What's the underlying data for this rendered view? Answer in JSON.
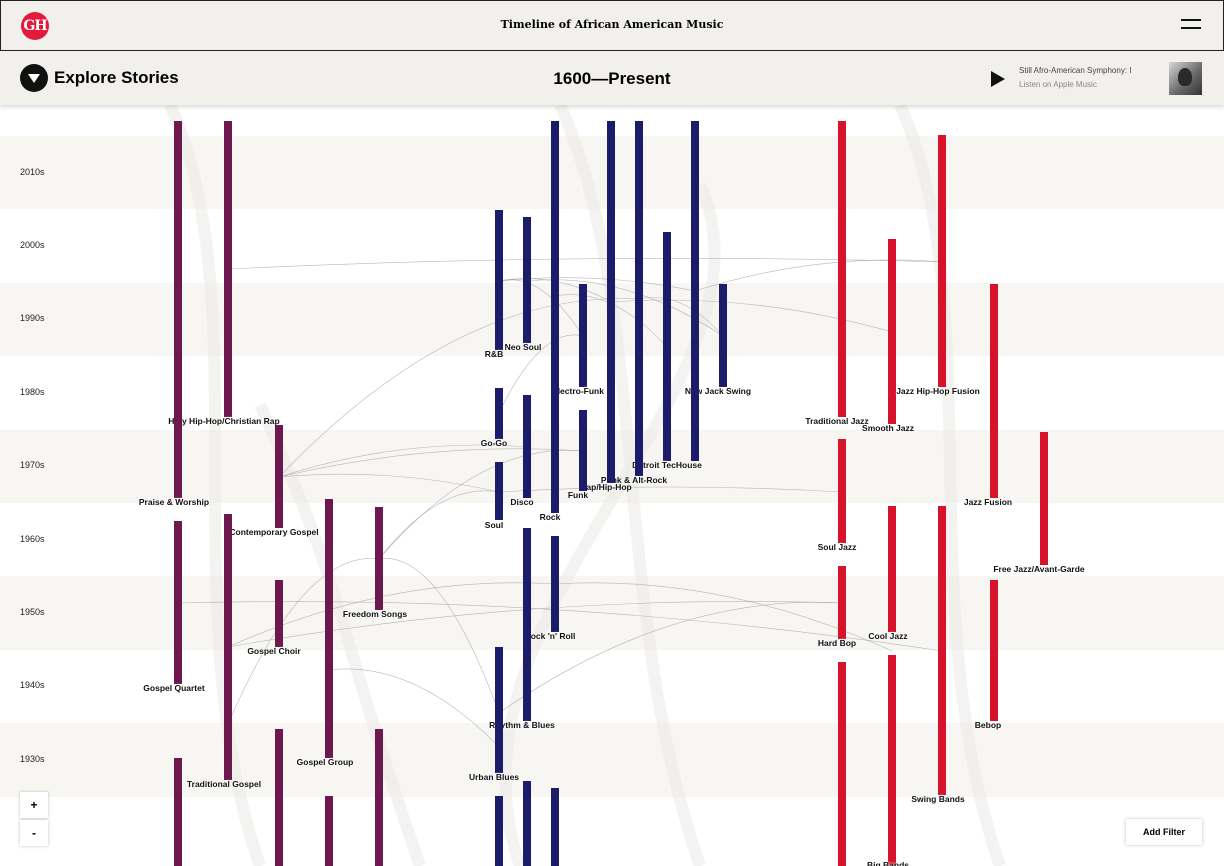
{
  "header": {
    "logo_text": "GH",
    "title": "Timeline of African American Music",
    "menu_icon": "hamburger-icon"
  },
  "subbar": {
    "explore_label": "Explore Stories",
    "period": "1600—Present",
    "track_text": "Still    Afro-American Symphony: I",
    "apple_label": "Listen on Apple Music"
  },
  "decades": [
    "2010s",
    "2000s",
    "1990s",
    "1980s",
    "1970s",
    "1960s",
    "1950s",
    "1940s",
    "1930s"
  ],
  "colors": {
    "gospel": "#6e1850",
    "rnb": "#1b1d6b",
    "jazz": "#d7132c",
    "band_alt": "#f7f6f3",
    "background": "#ffffff"
  },
  "genres": [
    {
      "name": "Holy Hip-Hop/Christian Rap",
      "group": "gospel"
    },
    {
      "name": "Praise & Worship",
      "group": "gospel"
    },
    {
      "name": "Contemporary Gospel",
      "group": "gospel"
    },
    {
      "name": "Freedom Songs",
      "group": "gospel"
    },
    {
      "name": "Gospel Choir",
      "group": "gospel"
    },
    {
      "name": "Gospel Quartet",
      "group": "gospel"
    },
    {
      "name": "Gospel Group",
      "group": "gospel"
    },
    {
      "name": "Traditional Gospel",
      "group": "gospel"
    },
    {
      "name": "R&B",
      "group": "rnb"
    },
    {
      "name": "Neo Soul",
      "group": "rnb"
    },
    {
      "name": "Electro-Funk",
      "group": "rnb"
    },
    {
      "name": "New Jack Swing",
      "group": "rnb"
    },
    {
      "name": "Go-Go",
      "group": "rnb"
    },
    {
      "name": "Detroit TecHouse",
      "group": "rnb"
    },
    {
      "name": "Punk & Alt-Rock",
      "group": "rnb"
    },
    {
      "name": "Rap/Hip-Hop",
      "group": "rnb"
    },
    {
      "name": "Funk",
      "group": "rnb"
    },
    {
      "name": "Disco",
      "group": "rnb"
    },
    {
      "name": "Soul",
      "group": "rnb"
    },
    {
      "name": "Rock",
      "group": "rnb"
    },
    {
      "name": "Rock 'n' Roll",
      "group": "rnb"
    },
    {
      "name": "Rhythm & Blues",
      "group": "rnb"
    },
    {
      "name": "Urban Blues",
      "group": "rnb"
    },
    {
      "name": "Traditional Jazz",
      "group": "jazz"
    },
    {
      "name": "Smooth Jazz",
      "group": "jazz"
    },
    {
      "name": "Jazz Hip-Hop Fusion",
      "group": "jazz"
    },
    {
      "name": "Jazz Fusion",
      "group": "jazz"
    },
    {
      "name": "Soul Jazz",
      "group": "jazz"
    },
    {
      "name": "Free Jazz/Avant-Garde",
      "group": "jazz"
    },
    {
      "name": "Cool Jazz",
      "group": "jazz"
    },
    {
      "name": "Hard Bop",
      "group": "jazz"
    },
    {
      "name": "Bebop",
      "group": "jazz"
    },
    {
      "name": "Swing Bands",
      "group": "jazz"
    },
    {
      "name": "Big Bands",
      "group": "jazz"
    }
  ],
  "controls": {
    "zoom_in": "+",
    "zoom_out": "-",
    "add_filter": "Add Filter"
  }
}
